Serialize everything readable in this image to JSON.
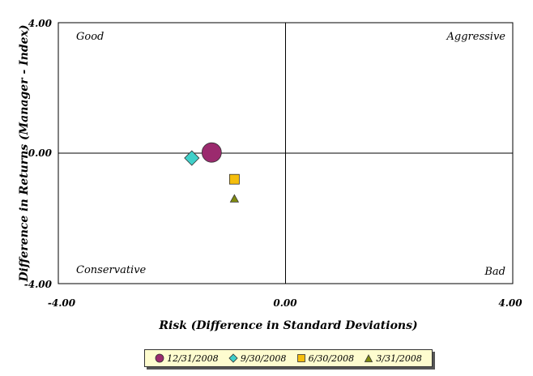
{
  "chart_data": {
    "type": "scatter",
    "xlabel": "Risk (Difference in Standard Deviations)",
    "ylabel": "Difference in Returns (Manager - Index)",
    "xlim": [
      -4.0,
      4.0
    ],
    "ylim": [
      -4.0,
      4.0
    ],
    "x_ticks": [
      "-4.00",
      "0.00",
      "4.00"
    ],
    "y_ticks": [
      "4.00",
      "0.00",
      "-4.00"
    ],
    "grid": false,
    "quadrant_labels": {
      "top_left": "Good",
      "top_right": "Aggressive",
      "bottom_left": "Conservative",
      "bottom_right": "Bad"
    },
    "legend_position": "bottom",
    "series": [
      {
        "name": "12/31/2008",
        "marker": "circle",
        "color": "#9b2a6e",
        "x": -1.3,
        "y": 0.02
      },
      {
        "name": "9/30/2008",
        "marker": "diamond",
        "color": "#3fd0c9",
        "x": -1.65,
        "y": -0.15
      },
      {
        "name": "6/30/2008",
        "marker": "square",
        "color": "#f5be0c",
        "x": -0.9,
        "y": -0.8
      },
      {
        "name": "3/31/2008",
        "marker": "triangle",
        "color": "#7f8a10",
        "x": -0.9,
        "y": -1.4
      }
    ]
  }
}
